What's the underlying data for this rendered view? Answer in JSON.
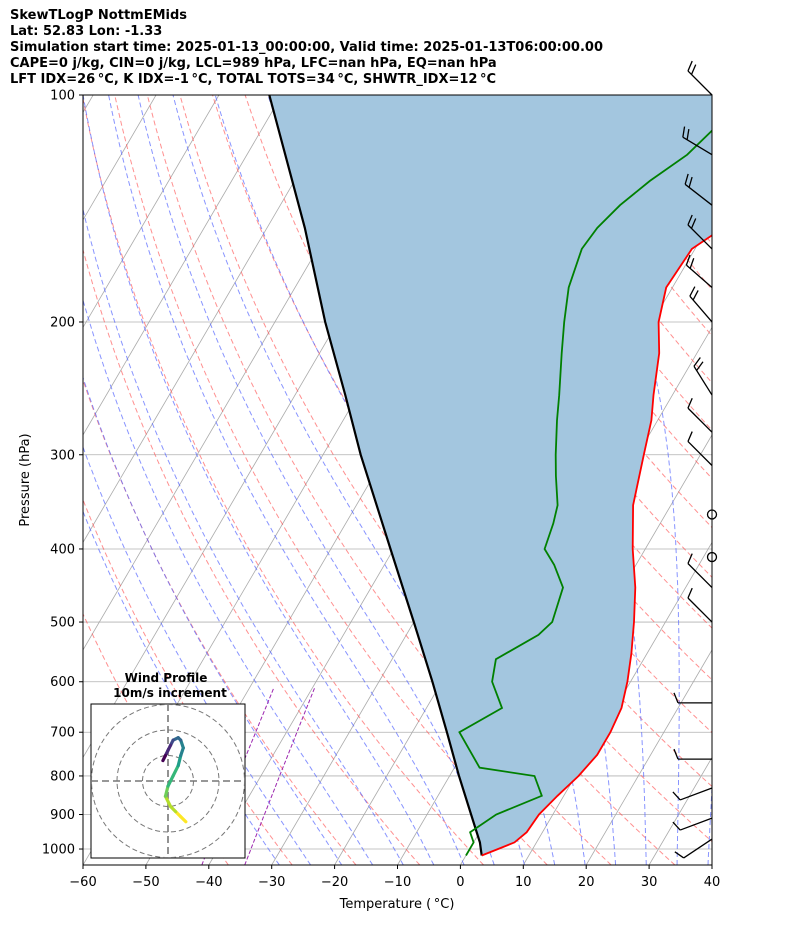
{
  "header": {
    "line1": "SkewTLogP NottmEMids",
    "line2": "Lat: 52.83   Lon: -1.33",
    "line3": "Simulation start time: 2025-01-13_00:00:00, Valid time: 2025-01-13T06:00:00.00",
    "line4": "CAPE=0 j/kg, CIN=0 j/kg, LCL=989 hPa, LFC=nan hPa, EQ=nan hPa",
    "line5": "LFT IDX=26 °C, K IDX=-1 °C, TOTAL TOTS=34 °C, SHWTR_IDX=12 °C"
  },
  "chart_data": {
    "type": "line",
    "subtype": "skew-t log-p",
    "xlabel": "Temperature ( °C)",
    "ylabel": "Pressure (hPa)",
    "xlim": [
      -60,
      40
    ],
    "ylim": [
      1050,
      100
    ],
    "y_scale": "log",
    "xticks": [
      -60,
      -50,
      -40,
      -30,
      -20,
      -10,
      0,
      10,
      20,
      30,
      40
    ],
    "xtick_labels": [
      "−60",
      "−50",
      "−40",
      "−30",
      "−20",
      "−10",
      "0",
      "10",
      "20",
      "30",
      "40"
    ],
    "yticks": [
      1000,
      900,
      800,
      700,
      600,
      500,
      400,
      300,
      200,
      100
    ],
    "grid": true,
    "colors": {
      "temperature": "#ff0000",
      "dewpoint": "#008000",
      "parcel": "#000000",
      "shade": "#a3c6df",
      "dry_adiabat": "#ff5555",
      "moist_adiabat": "#5566ff",
      "isotherm": "#aaaaaa",
      "mixing_ratio": "#9c27b0"
    },
    "series": [
      {
        "key": "temperature",
        "points": [
          [
            1020,
            2.5
          ],
          [
            1000,
            4.5
          ],
          [
            980,
            6.5
          ],
          [
            950,
            7.5
          ],
          [
            900,
            7.8
          ],
          [
            850,
            9.0
          ],
          [
            800,
            10.5
          ],
          [
            750,
            11.5
          ],
          [
            700,
            11.5
          ],
          [
            650,
            11.0
          ],
          [
            600,
            9.5
          ],
          [
            550,
            7.5
          ],
          [
            500,
            5.0
          ],
          [
            450,
            2.0
          ],
          [
            400,
            -2.0
          ],
          [
            350,
            -6.0
          ],
          [
            300,
            -9.0
          ],
          [
            270,
            -11.0
          ],
          [
            250,
            -13.0
          ],
          [
            220,
            -16.0
          ],
          [
            200,
            -19.0
          ],
          [
            180,
            -21.0
          ],
          [
            160,
            -20.5
          ],
          [
            150,
            -17.5
          ],
          [
            140,
            -14.0
          ],
          [
            130,
            -10.0
          ],
          [
            120,
            -6.0
          ],
          [
            110,
            -2.0
          ],
          [
            100,
            2.0
          ]
        ]
      },
      {
        "key": "dewpoint",
        "points": [
          [
            1020,
            0.0
          ],
          [
            980,
            0.0
          ],
          [
            950,
            -1.5
          ],
          [
            900,
            1.0
          ],
          [
            850,
            6.5
          ],
          [
            800,
            3.5
          ],
          [
            780,
            -6.0
          ],
          [
            700,
            -12.5
          ],
          [
            650,
            -8.0
          ],
          [
            600,
            -12.0
          ],
          [
            560,
            -13.5
          ],
          [
            520,
            -9.0
          ],
          [
            500,
            -8.0
          ],
          [
            450,
            -9.5
          ],
          [
            420,
            -13.0
          ],
          [
            400,
            -16.0
          ],
          [
            370,
            -17.0
          ],
          [
            350,
            -18.0
          ],
          [
            320,
            -21.0
          ],
          [
            300,
            -23.0
          ],
          [
            270,
            -26.0
          ],
          [
            250,
            -28.0
          ],
          [
            220,
            -31.5
          ],
          [
            200,
            -34.0
          ],
          [
            180,
            -36.5
          ],
          [
            160,
            -38.0
          ],
          [
            150,
            -37.5
          ],
          [
            140,
            -36.0
          ],
          [
            130,
            -33.5
          ],
          [
            120,
            -30.0
          ],
          [
            110,
            -28.0
          ],
          [
            100,
            -27.0
          ]
        ]
      },
      {
        "key": "parcel",
        "points": [
          [
            1020,
            2.5
          ],
          [
            980,
            1.0
          ],
          [
            900,
            -3.0
          ],
          [
            800,
            -8.5
          ],
          [
            700,
            -14.5
          ],
          [
            600,
            -21.5
          ],
          [
            500,
            -30.0
          ],
          [
            400,
            -40.5
          ],
          [
            300,
            -54.0
          ],
          [
            250,
            -62.0
          ],
          [
            200,
            -72.0
          ],
          [
            150,
            -84.0
          ],
          [
            100,
            -102.0
          ]
        ]
      }
    ],
    "wind_barbs": [
      {
        "p": 100,
        "u": 8,
        "v": -8
      },
      {
        "p": 120,
        "u": 10,
        "v": -6
      },
      {
        "p": 140,
        "u": 9,
        "v": -7
      },
      {
        "p": 160,
        "u": 8,
        "v": -8
      },
      {
        "p": 180,
        "u": 8,
        "v": -7
      },
      {
        "p": 200,
        "u": 6,
        "v": -7
      },
      {
        "p": 250,
        "u": 5,
        "v": -8
      },
      {
        "p": 280,
        "u": 6,
        "v": -6
      },
      {
        "p": 310,
        "u": 6,
        "v": -6
      },
      {
        "p": 360,
        "u": 0,
        "v": 0
      },
      {
        "p": 410,
        "u": 0,
        "v": 0
      },
      {
        "p": 450,
        "u": 5,
        "v": -5
      },
      {
        "p": 500,
        "u": 5,
        "v": -5
      },
      {
        "p": 640,
        "u": 8,
        "v": 0
      },
      {
        "p": 760,
        "u": 8,
        "v": 0
      },
      {
        "p": 830,
        "u": 8,
        "v": 3
      },
      {
        "p": 910,
        "u": 8,
        "v": 3
      },
      {
        "p": 970,
        "u": 6,
        "v": 4
      }
    ],
    "hodograph": {
      "title": "Wind Profile",
      "subtitle": "10m/s increment",
      "rings_ms": [
        10,
        20,
        30
      ],
      "trace": [
        [
          7,
          -16
        ],
        [
          5,
          -14
        ],
        [
          3,
          -12
        ],
        [
          1,
          -10
        ],
        [
          -1,
          -6
        ],
        [
          0,
          -2
        ],
        [
          2,
          2
        ],
        [
          4,
          6
        ],
        [
          5,
          10
        ],
        [
          6,
          13
        ],
        [
          5,
          16
        ],
        [
          4,
          17
        ],
        [
          2,
          16
        ],
        [
          1,
          14
        ],
        [
          0,
          12
        ],
        [
          -1,
          10
        ],
        [
          -2,
          8
        ]
      ]
    }
  }
}
